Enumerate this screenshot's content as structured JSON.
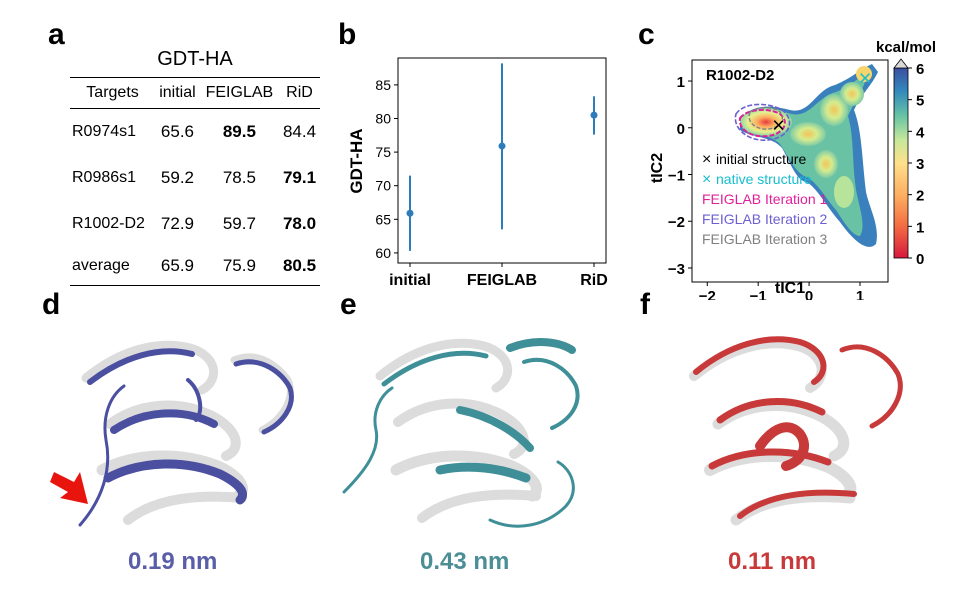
{
  "figure": {
    "panel_letters": [
      "a",
      "b",
      "c",
      "d",
      "e",
      "f"
    ]
  },
  "table": {
    "caption": "GDT-HA",
    "headers": [
      "Targets",
      "initial",
      "FEIGLAB",
      "RiD"
    ],
    "rows": [
      {
        "target": "R0974s1",
        "initial": "65.6",
        "feiglab": "89.5",
        "rid": "84.4",
        "bold": "feiglab"
      },
      {
        "target": "R0986s1",
        "initial": "59.2",
        "feiglab": "78.5",
        "rid": "79.1",
        "bold": "rid"
      },
      {
        "target": "R1002-D2",
        "initial": "72.9",
        "feiglab": "59.7",
        "rid": "78.0",
        "bold": "rid"
      },
      {
        "target": "average",
        "initial": "65.9",
        "feiglab": "75.9",
        "rid": "80.5",
        "bold": "rid"
      }
    ]
  },
  "chart_data": [
    {
      "type": "scatter",
      "panel": "b",
      "title": "",
      "xlabel": "",
      "ylabel": "GDT-HA",
      "categories": [
        "initial",
        "FEIGLAB",
        "RiD"
      ],
      "values": [
        65.9,
        75.9,
        80.5
      ],
      "error_low": [
        60.3,
        63.5,
        77.6
      ],
      "error_high": [
        71.5,
        88.2,
        83.3
      ],
      "ylim": [
        58.5,
        89
      ],
      "yticks": [
        60,
        65,
        70,
        75,
        80,
        85
      ],
      "color": "#2e7dbb"
    },
    {
      "type": "heatmap",
      "panel": "c",
      "title": "R1002-D2",
      "xlabel": "tIC1",
      "ylabel": "tIC2",
      "xlim": [
        -2.3,
        1.55
      ],
      "ylim": [
        -3.3,
        1.45
      ],
      "xticks": [
        -2,
        -1,
        0,
        1
      ],
      "yticks": [
        1,
        0,
        -1,
        -2,
        -3
      ],
      "colorbar": {
        "label": "kcal/mol",
        "ticks": [
          0,
          1,
          2,
          3,
          4,
          5,
          6
        ],
        "min": 0,
        "max": 6
      },
      "markers": [
        {
          "label": "initial structure",
          "x": -0.6,
          "y": 0.05,
          "color": "#000000",
          "symbol": "×"
        },
        {
          "label": "native structure",
          "x": 1.1,
          "y": 1.05,
          "color": "#17becf",
          "symbol": "×"
        }
      ],
      "legend": [
        {
          "label": "initial structure",
          "color": "#000000",
          "symbol": "×"
        },
        {
          "label": "native structure",
          "color": "#17becf",
          "symbol": "×"
        },
        {
          "label": "FEIGLAB Iteration 1",
          "color": "#e0209a",
          "symbol": ""
        },
        {
          "label": "FEIGLAB Iteration 2",
          "color": "#6b5fd1",
          "symbol": ""
        },
        {
          "label": "FEIGLAB Iteration 3",
          "color": "#808080",
          "symbol": ""
        }
      ]
    }
  ],
  "structures": [
    {
      "panel": "d",
      "rmsd": "0.19 nm",
      "color": "#4a4fa0",
      "label_color": "#5a5ea8"
    },
    {
      "panel": "e",
      "rmsd": "0.43 nm",
      "color": "#3f8f98",
      "label_color": "#4b8e96"
    },
    {
      "panel": "f",
      "rmsd": "0.11 nm",
      "color": "#c83a3a",
      "label_color": "#c83a3a"
    }
  ]
}
